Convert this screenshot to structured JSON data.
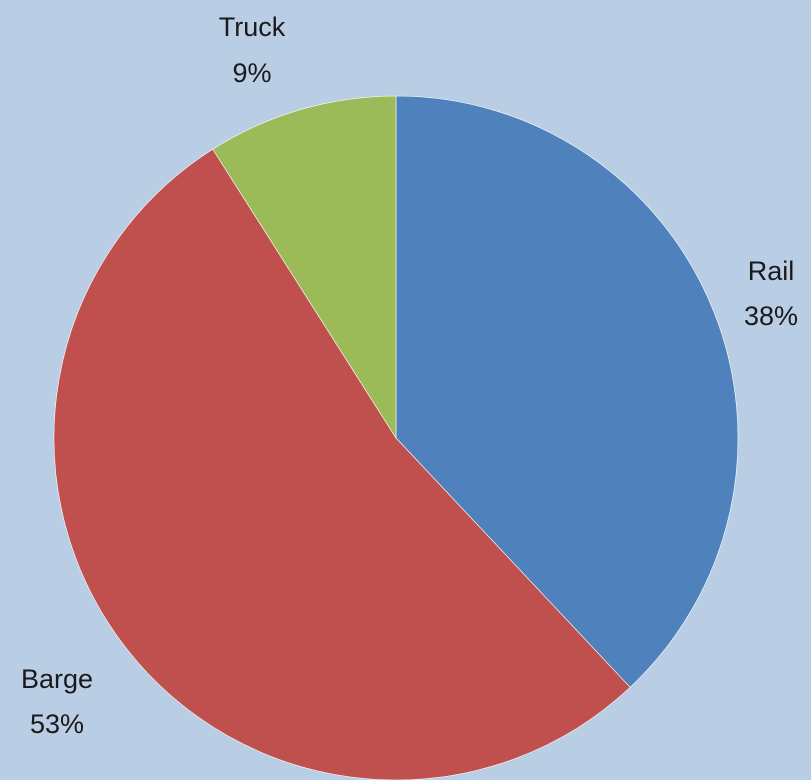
{
  "chart_data": {
    "type": "pie",
    "title": "",
    "slices": [
      {
        "label": "Rail",
        "value": 38,
        "value_label": "38%",
        "color": "#4f81bd"
      },
      {
        "label": "Barge",
        "value": 53,
        "value_label": "53%",
        "color": "#c0504d"
      },
      {
        "label": "Truck",
        "value": 9,
        "value_label": "9%",
        "color": "#9bbb59"
      }
    ],
    "start_angle_deg": 0,
    "direction": "clockwise",
    "legend": "none",
    "background": "#b9cde4"
  }
}
